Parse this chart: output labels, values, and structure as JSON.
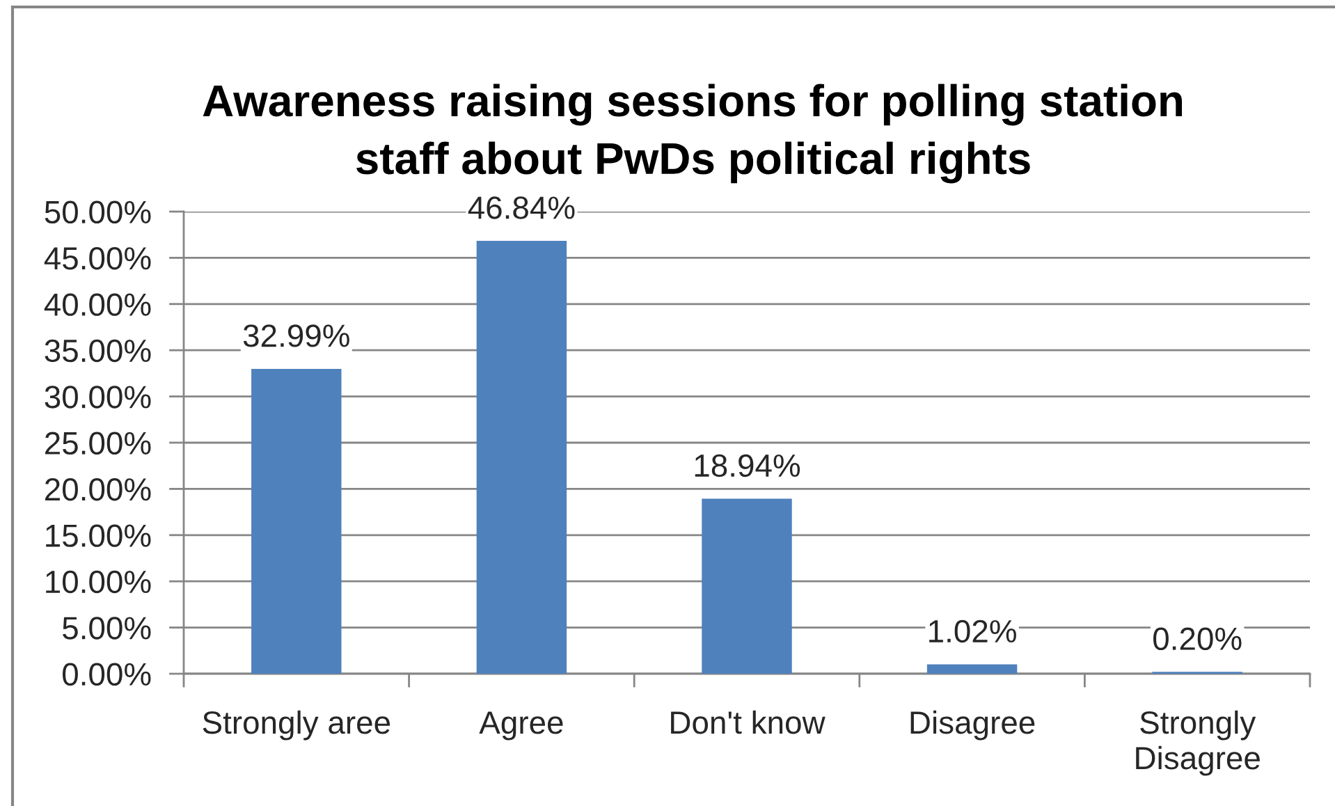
{
  "chart_data": {
    "type": "bar",
    "title": "Awareness raising sessions for polling station\nstaff about PwDs political rights",
    "categories": [
      "Strongly aree",
      "Agree",
      "Don't know",
      "Disagree",
      "Strongly\nDisagree"
    ],
    "values": [
      32.99,
      46.84,
      18.94,
      1.02,
      0.2
    ],
    "color": "#4f81bd",
    "value_labels": [
      "32.99%",
      "46.84%",
      "18.94%",
      "1.02%",
      "0.20%"
    ],
    "ylim": [
      0,
      50
    ],
    "yticks": [
      {
        "value": 0,
        "label": "0.00%"
      },
      {
        "value": 5,
        "label": "5.00%"
      },
      {
        "value": 10,
        "label": "10.00%"
      },
      {
        "value": 15,
        "label": "15.00%"
      },
      {
        "value": 20,
        "label": "20.00%"
      },
      {
        "value": 25,
        "label": "25.00%"
      },
      {
        "value": 30,
        "label": "30.00%"
      },
      {
        "value": 35,
        "label": "35.00%"
      },
      {
        "value": 40,
        "label": "40.00%"
      },
      {
        "value": 45,
        "label": "45.00%"
      },
      {
        "value": 50,
        "label": "50.00%"
      }
    ],
    "grid": "y"
  }
}
